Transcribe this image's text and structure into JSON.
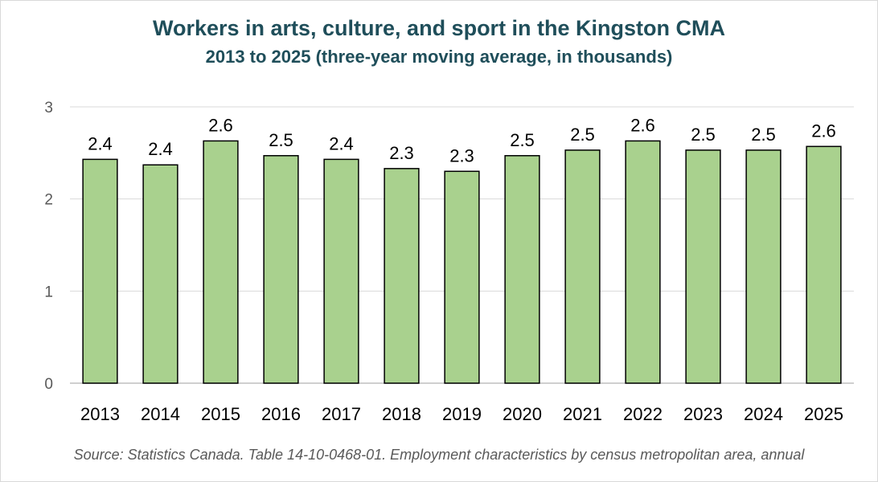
{
  "chart_data": {
    "type": "bar",
    "title": "Workers in arts, culture, and sport in the Kingston CMA",
    "subtitle": "2013 to 2025 (three-year moving average, in thousands)",
    "categories": [
      "2013",
      "2014",
      "2015",
      "2016",
      "2017",
      "2018",
      "2019",
      "2020",
      "2021",
      "2022",
      "2023",
      "2024",
      "2025"
    ],
    "values": [
      2.43,
      2.37,
      2.63,
      2.47,
      2.43,
      2.33,
      2.3,
      2.47,
      2.53,
      2.63,
      2.53,
      2.53,
      2.57
    ],
    "labels": [
      "2.4",
      "2.4",
      "2.6",
      "2.5",
      "2.4",
      "2.3",
      "2.3",
      "2.5",
      "2.5",
      "2.6",
      "2.5",
      "2.5",
      "2.6"
    ],
    "yticks": [
      "0",
      "1",
      "2",
      "3"
    ],
    "ylim": [
      0,
      3
    ],
    "grid": true,
    "bar_color": "#a9d18e",
    "bar_stroke": "#000000",
    "source": "Source: Statistics Canada. Table 14-10-0468-01. Employment characteristics by census metropolitan area, annual"
  }
}
